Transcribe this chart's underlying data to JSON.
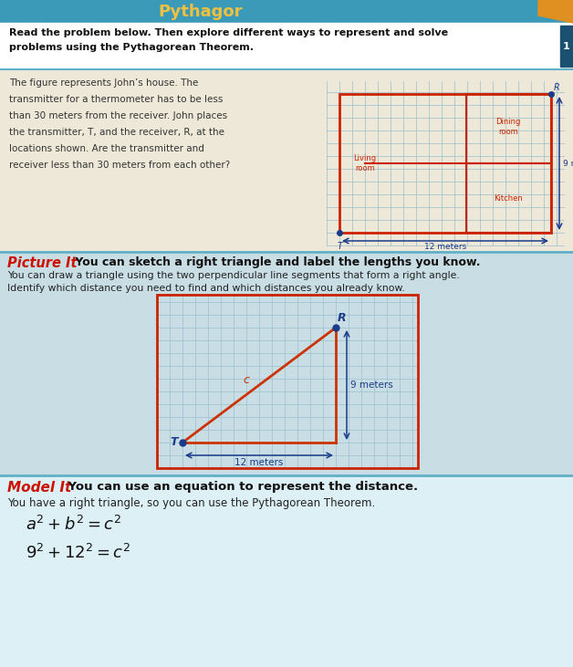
{
  "page_bg": "#c8dde4",
  "title_bar_color": "#3a9ab8",
  "title_text": "Pythagor",
  "title_color": "#f0c040",
  "orange_corner": "#e09020",
  "header_bg": "#ffffff",
  "header_text": "Read the problem below. Then explore different ways to represent and solve\nproblems using the Pythagorean Theorem.",
  "header_text_color": "#111111",
  "problem_bg": "#ede8d8",
  "problem_text_color": "#333333",
  "problem_line1": "The figure represents John’s house. The",
  "problem_line2": "transmitter for a thermometer has to be less",
  "problem_line3": "than 30 meters from the receiver. John places",
  "problem_line4": "the transmitter, T, and the receiver, R, at the",
  "problem_line5": "locations shown. Are the transmitter and",
  "problem_line6": "receiver less than 30 meters from each other?",
  "grid_color": "#9bbfcc",
  "house_color": "#cc2200",
  "arrow_color": "#1a3a8a",
  "dot_color": "#1a3a8a",
  "label_color": "#cc2200",
  "meters_color": "#1a3a8a",
  "diagonal_color": "#cc3300",
  "c_label_color": "#cc3300",
  "picture_it_label": "Picture It",
  "picture_it_color": "#cc1100",
  "picture_it_text": " You can sketch a right triangle and label the lengths you know.",
  "picture_it_sub1": "You can draw a triangle using the two perpendicular line segments that form a right angle.",
  "picture_it_sub2": "Identify which distance you need to find and which distances you already know.",
  "model_it_label": "Model It",
  "model_it_color": "#cc1100",
  "model_it_text": " You can use an equation to represent the distance.",
  "model_it_sub": "You have a right triangle, so you can use the Pythagorean Theorem.",
  "eq1": "$a^2 + b^2 = c^2$",
  "eq2": "$9^2 + 12^2 = c^2$",
  "sep_color": "#60b0c8",
  "tab_color": "#1a5070"
}
